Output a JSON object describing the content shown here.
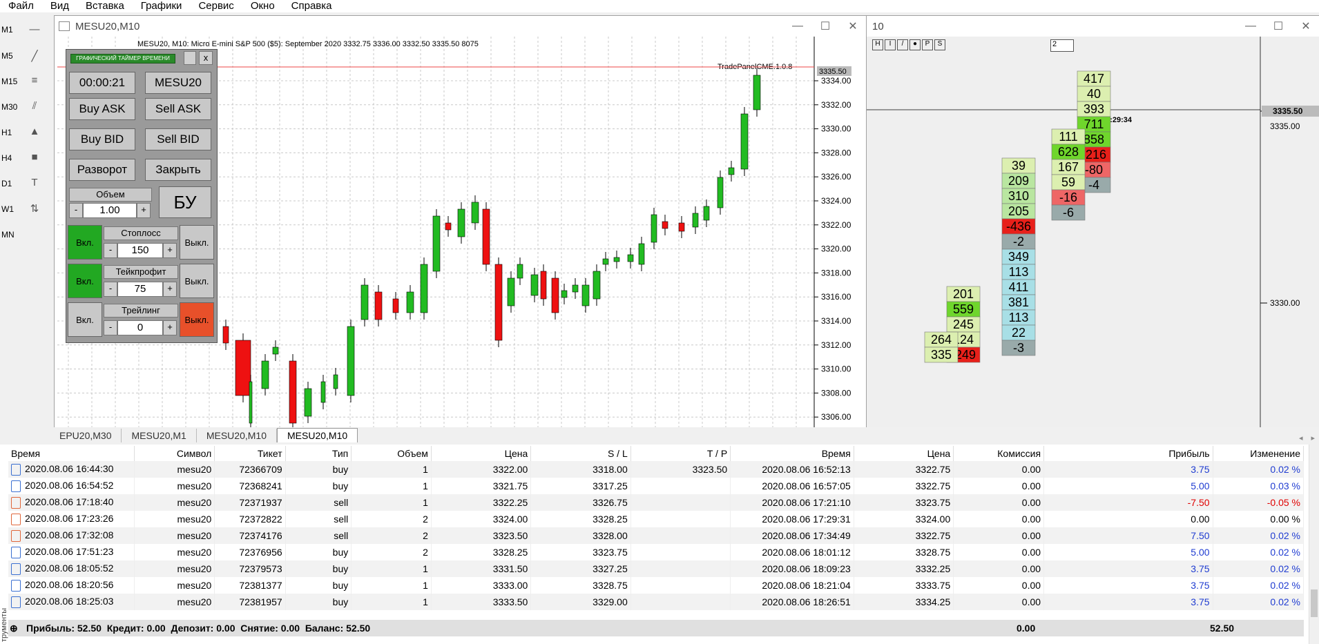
{
  "menu": [
    "Файл",
    "Вид",
    "Вставка",
    "Графики",
    "Сервис",
    "Окно",
    "Справка"
  ],
  "timeframes": [
    "M1",
    "M5",
    "M15",
    "M30",
    "H1",
    "H4",
    "D1",
    "W1",
    "MN"
  ],
  "chart_window": {
    "title": "MESU20,M10",
    "header": "MESU20, M10: Micro E-mini S&P 500 ($5): September 2020  3332.75 3336.00 3332.50 3335.50  8075",
    "indicator": "TradePanelCME.1.0.8",
    "price_label": "3335.50",
    "y_ticks": [
      "3334.00",
      "3332.00",
      "3330.00",
      "3328.00",
      "3326.00",
      "3324.00",
      "3322.00",
      "3320.00",
      "3318.00",
      "3316.00",
      "3314.00",
      "3312.00",
      "3310.00",
      "3308.00",
      "3306.00"
    ]
  },
  "panel": {
    "timer_title": "ГРАФИЧЕСКИЙ ТАЙМЕР ВРЕМЕНИ",
    "close_label": "x",
    "timer": "00:00:21",
    "symbol": "MESU20",
    "buy_ask": "Buy ASK",
    "sell_ask": "Sell ASK",
    "buy_bid": "Buy BID",
    "sell_bid": "Sell BID",
    "reverse": "Разворот",
    "close": "Закрыть",
    "volume_label": "Объем",
    "volume": "1.00",
    "minus": "-",
    "plus": "+",
    "bu": "БУ",
    "on": "Вкл.",
    "off": "Выкл.",
    "stoploss_label": "Стоплосс",
    "stoploss": "150",
    "takeprofit_label": "Тейкпрофит",
    "takeprofit": "75",
    "trailing_label": "Трейлинг",
    "trailing": "0"
  },
  "footprint_window": {
    "title": "10",
    "spinner": "2",
    "price_label": "3335.50",
    "price_levels": [
      "3335.00",
      "3330.00"
    ],
    "time_label": "23:29:34",
    "columns": [
      {
        "cells": [
          "417",
          "40",
          "393",
          "711",
          "858",
          "-216",
          "-80",
          "-4"
        ]
      },
      {
        "cells": [
          "111",
          "628",
          "167",
          "59",
          "-16",
          "-6"
        ]
      },
      {
        "cells": [
          "39",
          "209",
          "310",
          "205",
          "-436",
          "-2",
          "349",
          "113",
          "411",
          "381",
          "113",
          "22",
          "-3"
        ]
      },
      {
        "cells": [
          "201",
          "559",
          "245",
          "124",
          "-249"
        ]
      },
      {
        "cells": [
          "264",
          "335"
        ]
      }
    ]
  },
  "tabs": [
    "EPU20,M30",
    "MESU20,M1",
    "MESU20,M10",
    "MESU20,M10"
  ],
  "history": {
    "columns": [
      "Время",
      "Символ",
      "Тикет",
      "Тип",
      "Объем",
      "Цена",
      "S / L",
      "T / P",
      "Время",
      "Цена",
      "Комиссия",
      "Прибыль",
      "Изменение"
    ],
    "rows": [
      [
        "2020.08.06 16:44:30",
        "mesu20",
        "72366709",
        "buy",
        "1",
        "3322.00",
        "3318.00",
        "3323.50",
        "2020.08.06 16:52:13",
        "3322.75",
        "0.00",
        "3.75",
        "0.02 %"
      ],
      [
        "2020.08.06 16:54:52",
        "mesu20",
        "72368241",
        "buy",
        "1",
        "3321.75",
        "3317.25",
        "",
        "2020.08.06 16:57:05",
        "3322.75",
        "0.00",
        "5.00",
        "0.03 %"
      ],
      [
        "2020.08.06 17:18:40",
        "mesu20",
        "72371937",
        "sell",
        "1",
        "3322.25",
        "3326.75",
        "",
        "2020.08.06 17:21:10",
        "3323.75",
        "0.00",
        "-7.50",
        "-0.05 %"
      ],
      [
        "2020.08.06 17:23:26",
        "mesu20",
        "72372822",
        "sell",
        "2",
        "3324.00",
        "3328.25",
        "",
        "2020.08.06 17:29:31",
        "3324.00",
        "0.00",
        "0.00",
        "0.00 %"
      ],
      [
        "2020.08.06 17:32:08",
        "mesu20",
        "72374176",
        "sell",
        "2",
        "3323.50",
        "3328.00",
        "",
        "2020.08.06 17:34:49",
        "3322.75",
        "0.00",
        "7.50",
        "0.02 %"
      ],
      [
        "2020.08.06 17:51:23",
        "mesu20",
        "72376956",
        "buy",
        "2",
        "3328.25",
        "3323.75",
        "",
        "2020.08.06 18:01:12",
        "3328.75",
        "0.00",
        "5.00",
        "0.02 %"
      ],
      [
        "2020.08.06 18:05:52",
        "mesu20",
        "72379573",
        "buy",
        "1",
        "3331.50",
        "3327.25",
        "",
        "2020.08.06 18:09:23",
        "3332.25",
        "0.00",
        "3.75",
        "0.02 %"
      ],
      [
        "2020.08.06 18:20:56",
        "mesu20",
        "72381377",
        "buy",
        "1",
        "3333.00",
        "3328.75",
        "",
        "2020.08.06 18:21:04",
        "3333.75",
        "0.00",
        "3.75",
        "0.02 %"
      ],
      [
        "2020.08.06 18:25:03",
        "mesu20",
        "72381957",
        "buy",
        "1",
        "3333.50",
        "3329.00",
        "",
        "2020.08.06 18:26:51",
        "3334.25",
        "0.00",
        "3.75",
        "0.02 %"
      ]
    ],
    "summary": "Прибыль: 52.50  Кредит: 0.00  Депозит: 0.00  Снятие: 0.00  Баланс: 52.50",
    "summary_commission": "0.00",
    "summary_profit": "52.50",
    "side_label": "трументы"
  },
  "colors": {
    "bull": "#22bb22",
    "bear": "#ee1111",
    "panel": "#9a9a9a",
    "accent_blue": "#1f3cd1"
  }
}
